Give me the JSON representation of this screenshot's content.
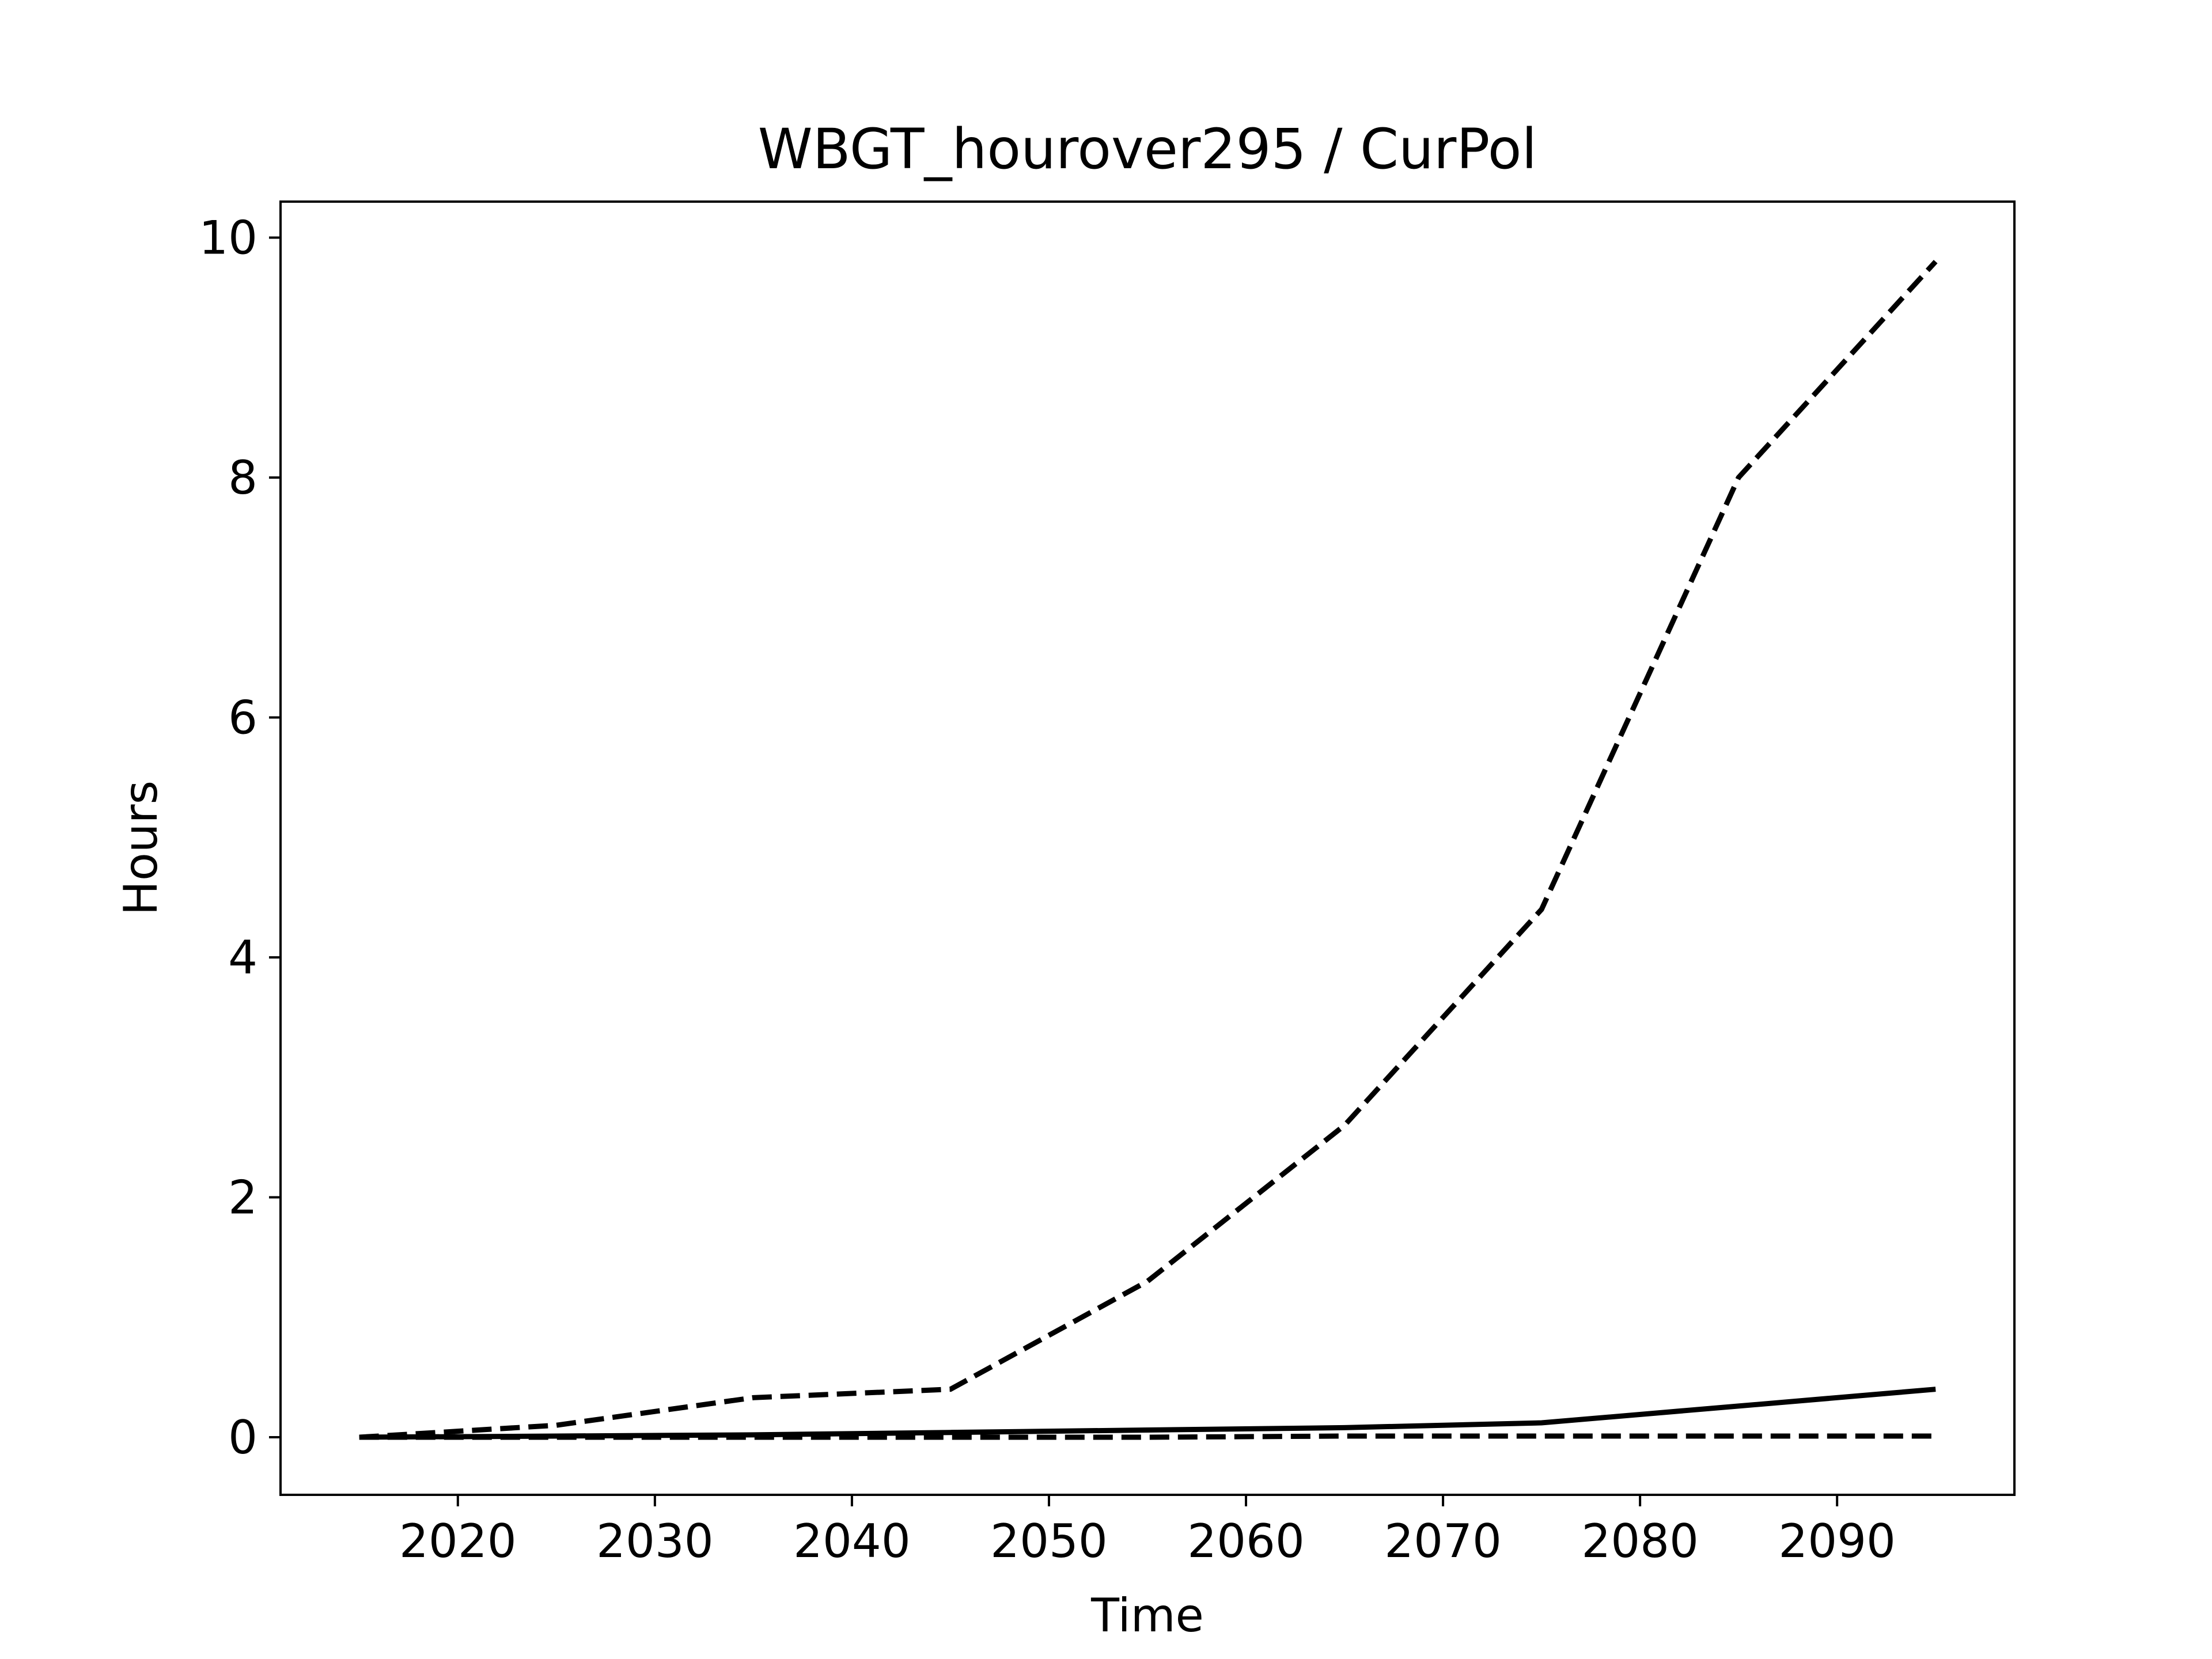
{
  "chart_data": {
    "type": "line",
    "title": "WBGT_hourover295 / CurPol",
    "xlabel": "Time",
    "ylabel": "Hours",
    "xlim": [
      2011,
      2099
    ],
    "ylim": [
      -0.48,
      10.3
    ],
    "x_ticks": [
      2020,
      2030,
      2040,
      2050,
      2060,
      2070,
      2080,
      2090
    ],
    "y_ticks": [
      0,
      2,
      4,
      6,
      8,
      10
    ],
    "grid": false,
    "legend": "none",
    "x": [
      2015,
      2025,
      2035,
      2045,
      2055,
      2065,
      2075,
      2085,
      2095
    ],
    "series": [
      {
        "style": "dashed",
        "color": "#000000",
        "values": [
          0.0,
          0.1,
          0.33,
          0.4,
          1.3,
          2.6,
          4.4,
          8.0,
          9.8
        ]
      },
      {
        "style": "solid",
        "color": "#000000",
        "values": [
          0.0,
          0.01,
          0.02,
          0.04,
          0.06,
          0.08,
          0.12,
          0.26,
          0.4
        ]
      },
      {
        "style": "dashed",
        "color": "#000000",
        "values": [
          0.0,
          0.0,
          0.0,
          0.0,
          0.0,
          0.01,
          0.01,
          0.01,
          0.01
        ]
      }
    ]
  }
}
